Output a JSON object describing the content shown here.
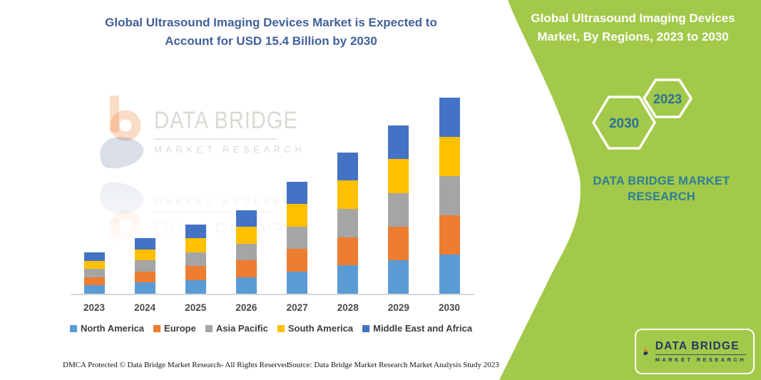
{
  "left_panel": {
    "title_line1": "Global Ultrasound Imaging Devices Market is Expected to",
    "title_line2": "Account for USD 15.4 Billion by 2030",
    "title_color": "#41609C"
  },
  "watermark": {
    "brand": "DATA BRIDGE",
    "sub": "MARKET RESEARCH"
  },
  "chart_data": {
    "type": "bar",
    "stacked": true,
    "title": "Global Ultrasound Imaging Devices Market is Expected to Account for USD 15.4 Billion by 2030",
    "unit": "USD Billion",
    "categories": [
      "2023",
      "2024",
      "2025",
      "2026",
      "2027",
      "2028",
      "2029",
      "2030"
    ],
    "series": [
      {
        "name": "North America",
        "color": "#5B9BD5",
        "values": [
          0.65,
          0.87,
          1.09,
          1.31,
          1.76,
          2.22,
          2.64,
          3.08
        ]
      },
      {
        "name": "Europe",
        "color": "#ED7D31",
        "values": [
          0.65,
          0.87,
          1.09,
          1.31,
          1.76,
          2.22,
          2.64,
          3.08
        ]
      },
      {
        "name": "Asia Pacific",
        "color": "#A5A5A5",
        "values": [
          0.65,
          0.87,
          1.09,
          1.31,
          1.76,
          2.22,
          2.64,
          3.08
        ]
      },
      {
        "name": "South America",
        "color": "#FFC000",
        "values": [
          0.65,
          0.87,
          1.09,
          1.31,
          1.76,
          2.22,
          2.64,
          3.08
        ]
      },
      {
        "name": "Middle East and Africa",
        "color": "#4472C4",
        "values": [
          0.65,
          0.87,
          1.09,
          1.31,
          1.76,
          2.22,
          2.64,
          3.08
        ]
      }
    ],
    "totals": [
      3.25,
      4.35,
      5.45,
      6.55,
      8.8,
      11.1,
      13.2,
      15.4
    ],
    "ylim": [
      0,
      15.4
    ],
    "xlabel": "",
    "ylabel": "",
    "y_axis_visible": false,
    "gridlines": false,
    "legend_position": "bottom"
  },
  "footer": {
    "dmca": "DMCA Protected © Data Bridge Market Research-  All Rights Reserved.",
    "source": "Source: Data Bridge Market Research  Market Analysis Study 2023"
  },
  "right_panel": {
    "panel_color": "#A2C94A",
    "title_line1": "Global Ultrasound Imaging Devices",
    "title_line2": "Market, By Regions, 2023 to 2030",
    "hexagon_back_label": "2030",
    "hexagon_front_label": "2023",
    "brand_caption_line1": "DATA BRIDGE MARKET",
    "brand_caption_line2": "RESEARCH"
  },
  "logo": {
    "name": "DATA BRIDGE",
    "sub": "MARKET RESEARCH",
    "navy": "#203864",
    "orange": "#E87722"
  }
}
